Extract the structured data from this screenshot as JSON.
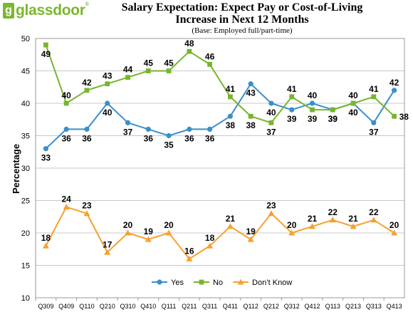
{
  "header": {
    "logo_mark": "g",
    "logo_text": "glassdoor",
    "logo_tm": "®",
    "title_line1": "Salary Expectation: Expect Pay or Cost-of-Living",
    "title_line2": "Increase in Next 12 Months",
    "subtitle": "(Base: Employed full/part-time)"
  },
  "colors": {
    "yes": "#3a8fc8",
    "no": "#77b52c",
    "dont_know": "#f7a02e",
    "grid": "#c8c8c8"
  },
  "chart_data": {
    "type": "line",
    "title": "Salary Expectation: Expect Pay or Cost-of-Living Increase in Next 12 Months",
    "subtitle": "(Base: Employed full/part-time)",
    "xlabel": "",
    "ylabel": "Percentage",
    "ylim": [
      10,
      50
    ],
    "yticks": [
      10,
      15,
      20,
      25,
      30,
      35,
      40,
      45,
      50
    ],
    "grid": true,
    "legend_position": "bottom",
    "categories": [
      "Q309",
      "Q409",
      "Q110",
      "Q210",
      "Q310",
      "Q410",
      "Q111",
      "Q211",
      "Q311",
      "Q411",
      "Q112",
      "Q212",
      "Q312",
      "Q412",
      "Q113",
      "Q213",
      "Q313",
      "Q413"
    ],
    "series": [
      {
        "name": "Yes",
        "marker": "circle",
        "color": "#3a8fc8",
        "values": [
          33,
          36,
          36,
          40,
          37,
          36,
          35,
          36,
          36,
          38,
          43,
          40,
          39,
          40,
          39,
          40,
          37,
          42
        ],
        "label_pos": [
          "below",
          "below",
          "below",
          "below",
          "below",
          "below",
          "below",
          "below",
          "below",
          "below",
          "below",
          "below",
          "below",
          "above",
          "below",
          "below",
          "below",
          "above"
        ]
      },
      {
        "name": "No",
        "marker": "square",
        "color": "#77b52c",
        "values": [
          49,
          40,
          42,
          43,
          44,
          45,
          45,
          48,
          46,
          41,
          38,
          37,
          41,
          39,
          39,
          40,
          41,
          38
        ],
        "label_pos": [
          "below",
          "above",
          "above",
          "above",
          "above",
          "above",
          "above",
          "above",
          "above",
          "above",
          "below",
          "below",
          "above",
          "below",
          "below",
          "above",
          "above",
          "right"
        ]
      },
      {
        "name": "Don’t Know",
        "marker": "triangle",
        "color": "#f7a02e",
        "values": [
          18,
          24,
          23,
          17,
          20,
          19,
          20,
          16,
          18,
          21,
          19,
          23,
          20,
          21,
          22,
          21,
          22,
          20
        ],
        "label_pos": [
          "above",
          "above",
          "above",
          "above",
          "above",
          "above",
          "above",
          "above",
          "above",
          "above",
          "above",
          "above",
          "above",
          "above",
          "above",
          "above",
          "above",
          "above"
        ]
      }
    ]
  }
}
